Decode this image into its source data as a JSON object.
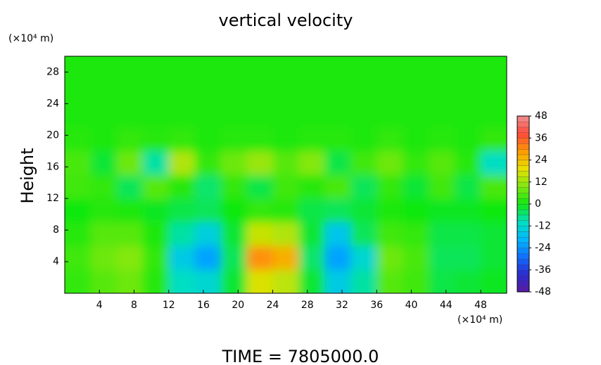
{
  "chart_data": {
    "type": "heatmap",
    "title": "vertical velocity",
    "ylabel": "Height",
    "yunit": "(×10⁴ m)",
    "xunit": "(×10⁴ m)",
    "footer": "TIME  =  7805000.0",
    "xlim": [
      0,
      51
    ],
    "ylim": [
      0,
      30
    ],
    "xticks": [
      4,
      8,
      12,
      16,
      20,
      24,
      28,
      32,
      36,
      40,
      44,
      48
    ],
    "yticks": [
      4,
      8,
      12,
      16,
      20,
      24,
      28
    ],
    "x": [
      1.5,
      4.5,
      7.5,
      10.5,
      13.5,
      16.5,
      19.5,
      22.5,
      25.5,
      28.5,
      31.5,
      34.5,
      37.5,
      40.5,
      43.5,
      46.5,
      49.5
    ],
    "y": [
      1.5,
      4.5,
      7.5,
      10.5,
      13.5,
      16.5,
      19.5,
      22.5,
      25.5,
      28.5
    ],
    "z": [
      [
        3,
        6,
        8,
        2,
        -10,
        -12,
        -2,
        18,
        15,
        -2,
        -15,
        -8,
        6,
        4,
        -3,
        -2,
        -1
      ],
      [
        4,
        8,
        10,
        3,
        -15,
        -22,
        -4,
        30,
        26,
        -5,
        -22,
        -12,
        8,
        5,
        -4,
        -4,
        -2
      ],
      [
        2,
        6,
        6,
        1,
        -8,
        -14,
        -2,
        16,
        14,
        -2,
        -16,
        -4,
        4,
        3,
        -3,
        -3,
        -2
      ],
      [
        0,
        2,
        1,
        -1,
        -3,
        -4,
        0,
        3,
        2,
        -3,
        -4,
        -2,
        1,
        0,
        -1,
        -1,
        0
      ],
      [
        4,
        3,
        -4,
        6,
        2,
        -5,
        3,
        -3,
        4,
        2,
        5,
        -4,
        3,
        -2,
        4,
        -3,
        5
      ],
      [
        5,
        -2,
        8,
        -8,
        14,
        3,
        8,
        12,
        6,
        10,
        -3,
        4,
        8,
        3,
        6,
        2,
        -10
      ],
      [
        2,
        1,
        3,
        2,
        3,
        1,
        2,
        2,
        1,
        2,
        2,
        1,
        3,
        1,
        2,
        1,
        3
      ],
      [
        1,
        1,
        1,
        1,
        1,
        1,
        1,
        1,
        1,
        1,
        1,
        1,
        1,
        1,
        1,
        1,
        1
      ],
      [
        1,
        1,
        1,
        1,
        1,
        1,
        1,
        1,
        1,
        1,
        1,
        1,
        1,
        1,
        1,
        1,
        1
      ],
      [
        1,
        1,
        1,
        1,
        1,
        1,
        1,
        1,
        1,
        1,
        1,
        1,
        1,
        1,
        1,
        1,
        1
      ]
    ],
    "clim": [
      -48,
      48
    ],
    "cticks": [
      48,
      36,
      24,
      12,
      0,
      -12,
      -24,
      -36,
      -48
    ],
    "colormap": [
      "#5a1aa0",
      "#2a2ad0",
      "#1070ff",
      "#00b8ff",
      "#00e0c0",
      "#10e810",
      "#80e810",
      "#e8e000",
      "#ff9a00",
      "#ff4a3a",
      "#f09090"
    ]
  }
}
